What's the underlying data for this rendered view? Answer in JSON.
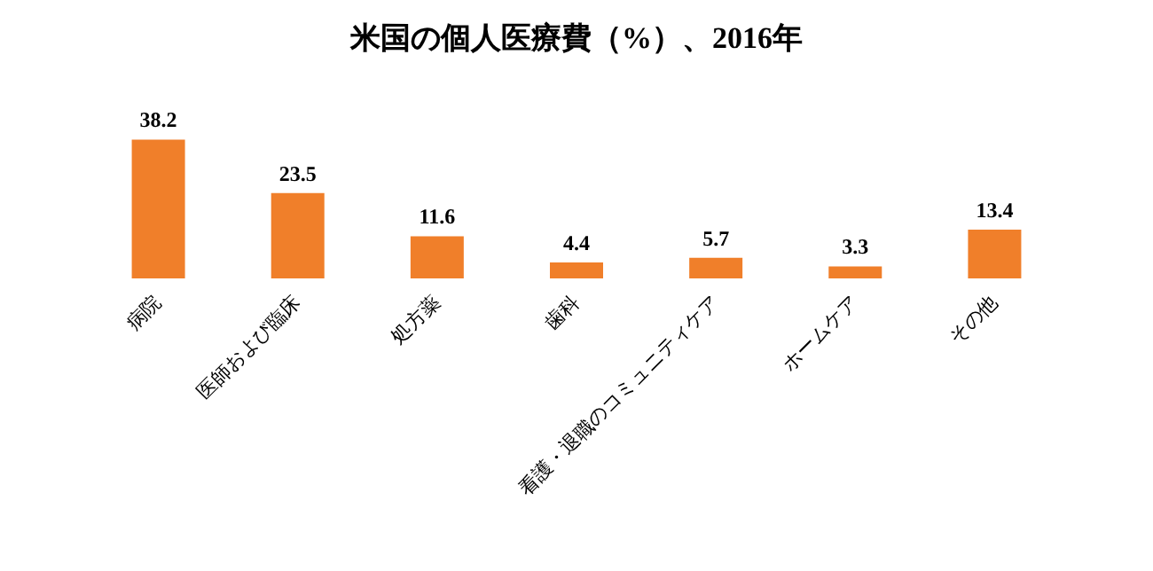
{
  "chart_data": {
    "type": "bar",
    "title": "米国の個人医療費（%）、2016年",
    "categories": [
      "病院",
      "医師および臨床",
      "処方薬",
      "歯科",
      "看護・退職のコミュニティケア",
      "ホームケア",
      "その他"
    ],
    "values": [
      38.2,
      23.5,
      11.6,
      4.4,
      5.7,
      3.3,
      13.4
    ],
    "color": "#f07f2a",
    "data_labels": true
  }
}
